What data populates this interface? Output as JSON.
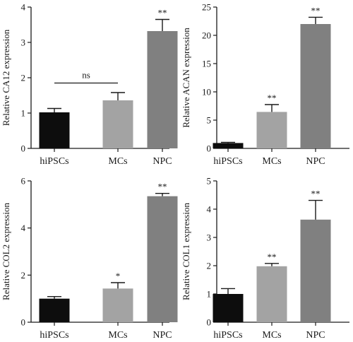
{
  "colors": {
    "hiPSCs": "#0d0d0d",
    "MCs": "#a3a3a3",
    "NPC": "#808080",
    "axis": "#1a1a1a"
  },
  "chart_data": [
    {
      "type": "bar",
      "categories": [
        "hiPSCs",
        "MCs",
        "NPC"
      ],
      "values": [
        1.02,
        1.36,
        3.32
      ],
      "errors": [
        0.11,
        0.22,
        0.33
      ],
      "significance": [
        "",
        "",
        "**"
      ],
      "ylabel": "Relative CA12 expression",
      "ylim": [
        0,
        4
      ],
      "yticks": [
        0,
        1,
        2,
        3,
        4
      ],
      "bracket": {
        "from": 0,
        "to": 1,
        "label": "ns",
        "y": 1.85
      }
    },
    {
      "type": "bar",
      "categories": [
        "hiPSCs",
        "MCs",
        "NPC"
      ],
      "values": [
        0.95,
        6.45,
        22.0
      ],
      "errors": [
        0.12,
        1.3,
        1.2
      ],
      "significance": [
        "",
        "**",
        "**"
      ],
      "ylabel": "Relative ACAN expression",
      "ylim": [
        0,
        25
      ],
      "yticks": [
        0,
        5,
        10,
        15,
        20,
        25
      ]
    },
    {
      "type": "bar",
      "categories": [
        "hiPSCs",
        "MCs",
        "NPC"
      ],
      "values": [
        1.0,
        1.43,
        5.35
      ],
      "errors": [
        0.09,
        0.25,
        0.12
      ],
      "significance": [
        "",
        "*",
        "**"
      ],
      "ylabel": "Relative COL2 expression",
      "ylim": [
        0,
        6
      ],
      "yticks": [
        0,
        2,
        4,
        6
      ]
    },
    {
      "type": "bar",
      "categories": [
        "hiPSCs",
        "MCs",
        "NPC"
      ],
      "values": [
        1.0,
        1.98,
        3.63
      ],
      "errors": [
        0.19,
        0.1,
        0.68
      ],
      "significance": [
        "",
        "**",
        "**"
      ],
      "ylabel": "Relative COL1 expression",
      "ylim": [
        0,
        5
      ],
      "yticks": [
        0,
        1,
        2,
        3,
        4,
        5
      ]
    }
  ]
}
